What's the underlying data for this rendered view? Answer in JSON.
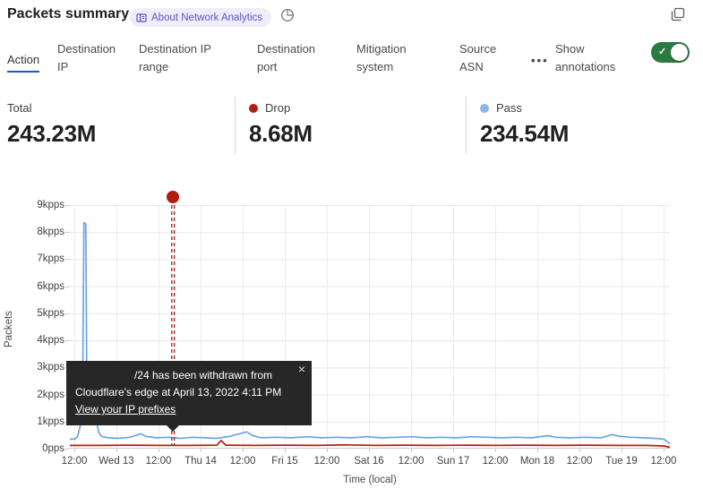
{
  "header": {
    "title": "Packets summary",
    "badge_label": "About Network Analytics",
    "pie_icon": "time-pie-icon",
    "expand_icon": "expand-panel-icon"
  },
  "tabs": {
    "items": [
      {
        "label": "Action",
        "active": true
      },
      {
        "label": "Destination IP",
        "active": false
      },
      {
        "label": "Destination IP range",
        "active": false
      },
      {
        "label": "Destination port",
        "active": false
      },
      {
        "label": "Mitigation system",
        "active": false
      },
      {
        "label": "Source ASN",
        "active": false
      }
    ],
    "more_label": "•••",
    "annotations_toggle": {
      "label": "Show annotations",
      "state": "on"
    }
  },
  "stats": {
    "total": {
      "label": "Total",
      "value": "243.23M"
    },
    "drop": {
      "label": "Drop",
      "value": "8.68M",
      "dot_color": "#b01f12"
    },
    "pass": {
      "label": "Pass",
      "value": "234.54M",
      "dot_color": "#8ab6ea"
    }
  },
  "tooltip": {
    "line1": "/24 has been withdrawn from",
    "line2": "Cloudflare's edge at April 13, 2022 4:11 PM",
    "link": "View your IP prefixes",
    "close": "×"
  },
  "chart_data": {
    "type": "line",
    "title": "Packets summary",
    "ylabel": "Packets",
    "xlabel": "Time (local)",
    "ylim": [
      0,
      9
    ],
    "y_unit": "kpps",
    "grid": true,
    "y_ticks": [
      "9kpps",
      "8kpps",
      "7kpps",
      "6kpps",
      "5kpps",
      "4kpps",
      "3kpps",
      "2kpps",
      "1kpps",
      "0pps"
    ],
    "x_ticks": [
      "12:00",
      "Wed 13",
      "12:00",
      "Thu 14",
      "12:00",
      "Fri 15",
      "12:00",
      "Sat 16",
      "12:00",
      "Sun 17",
      "12:00",
      "Mon 18",
      "12:00",
      "Tue 19",
      "12:00"
    ],
    "annotation": {
      "x_frac": 0.172,
      "color": "#a6190e",
      "label": "/24 has been withdrawn from Cloudflare's edge at April 13, 2022 4:11 PM"
    },
    "series": [
      {
        "name": "Pass",
        "color": "#6ca4e8",
        "points": [
          [
            0,
            0.35
          ],
          [
            0.008,
            0.35
          ],
          [
            0.013,
            0.45
          ],
          [
            0.018,
            0.9
          ],
          [
            0.021,
            1.3
          ],
          [
            0.0235,
            8.35
          ],
          [
            0.0265,
            8.3
          ],
          [
            0.028,
            3.0
          ],
          [
            0.03,
            1.1
          ],
          [
            0.034,
            0.95
          ],
          [
            0.038,
            1.0
          ],
          [
            0.042,
            0.9
          ],
          [
            0.045,
            1.0
          ],
          [
            0.048,
            0.6
          ],
          [
            0.053,
            0.45
          ],
          [
            0.065,
            0.4
          ],
          [
            0.08,
            0.38
          ],
          [
            0.1,
            0.42
          ],
          [
            0.118,
            0.55
          ],
          [
            0.127,
            0.45
          ],
          [
            0.145,
            0.4
          ],
          [
            0.165,
            0.42
          ],
          [
            0.185,
            0.38
          ],
          [
            0.205,
            0.42
          ],
          [
            0.225,
            0.4
          ],
          [
            0.245,
            0.38
          ],
          [
            0.265,
            0.45
          ],
          [
            0.295,
            0.62
          ],
          [
            0.305,
            0.48
          ],
          [
            0.32,
            0.4
          ],
          [
            0.345,
            0.42
          ],
          [
            0.37,
            0.4
          ],
          [
            0.395,
            0.44
          ],
          [
            0.42,
            0.4
          ],
          [
            0.445,
            0.42
          ],
          [
            0.47,
            0.4
          ],
          [
            0.495,
            0.44
          ],
          [
            0.52,
            0.4
          ],
          [
            0.545,
            0.42
          ],
          [
            0.57,
            0.44
          ],
          [
            0.595,
            0.4
          ],
          [
            0.62,
            0.42
          ],
          [
            0.645,
            0.4
          ],
          [
            0.67,
            0.44
          ],
          [
            0.695,
            0.42
          ],
          [
            0.72,
            0.4
          ],
          [
            0.745,
            0.42
          ],
          [
            0.77,
            0.4
          ],
          [
            0.797,
            0.48
          ],
          [
            0.81,
            0.42
          ],
          [
            0.835,
            0.4
          ],
          [
            0.86,
            0.42
          ],
          [
            0.885,
            0.4
          ],
          [
            0.904,
            0.52
          ],
          [
            0.915,
            0.46
          ],
          [
            0.935,
            0.42
          ],
          [
            0.955,
            0.4
          ],
          [
            0.975,
            0.38
          ],
          [
            0.99,
            0.35
          ],
          [
            1,
            0.18
          ]
        ]
      },
      {
        "name": "Drop",
        "color": "#b32114",
        "points": [
          [
            0,
            0.12
          ],
          [
            0.05,
            0.12
          ],
          [
            0.1,
            0.13
          ],
          [
            0.15,
            0.12
          ],
          [
            0.2,
            0.12
          ],
          [
            0.245,
            0.13
          ],
          [
            0.252,
            0.3
          ],
          [
            0.26,
            0.13
          ],
          [
            0.31,
            0.12
          ],
          [
            0.36,
            0.13
          ],
          [
            0.41,
            0.12
          ],
          [
            0.46,
            0.14
          ],
          [
            0.51,
            0.12
          ],
          [
            0.56,
            0.13
          ],
          [
            0.61,
            0.12
          ],
          [
            0.66,
            0.13
          ],
          [
            0.71,
            0.12
          ],
          [
            0.76,
            0.13
          ],
          [
            0.81,
            0.12
          ],
          [
            0.86,
            0.13
          ],
          [
            0.91,
            0.12
          ],
          [
            0.96,
            0.12
          ],
          [
            0.99,
            0.1
          ],
          [
            1,
            0.05
          ]
        ]
      }
    ]
  }
}
